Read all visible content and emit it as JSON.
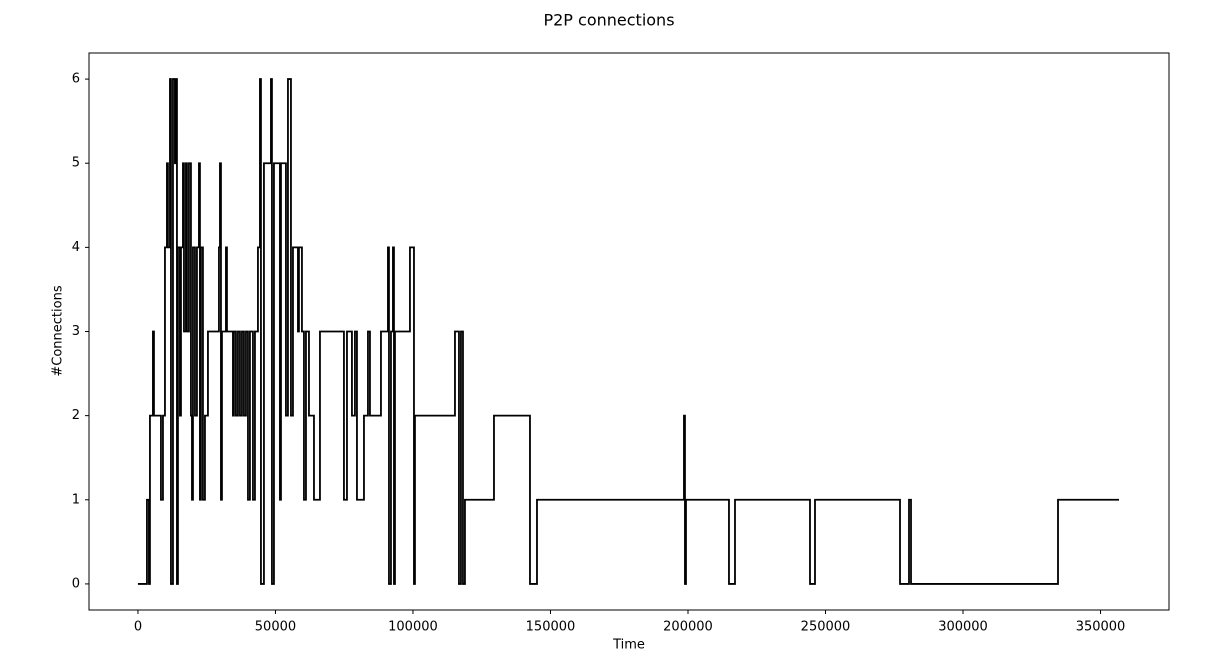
{
  "chart_data": {
    "type": "step",
    "title": "P2P connections",
    "x_label": "Time",
    "y_label": "#Connections",
    "series": [
      {
        "name": "connections",
        "color": "#000000",
        "x": [
          0,
          3270,
          4000,
          4360,
          5450,
          5820,
          8360,
          9090,
          9820,
          10540,
          10900,
          11640,
          12000,
          12730,
          13450,
          13800,
          14180,
          14540,
          15270,
          15640,
          16360,
          16730,
          17450,
          17820,
          18540,
          19270,
          19640,
          20000,
          20730,
          21450,
          22180,
          22540,
          22900,
          23630,
          24360,
          25450,
          29450,
          29820,
          30180,
          30540,
          32000,
          32360,
          34540,
          34900,
          35630,
          36360,
          37090,
          37820,
          38540,
          39270,
          40000,
          40720,
          41810,
          42540,
          43630,
          44360,
          44720,
          45810,
          48360,
          48720,
          49450,
          51630,
          52000,
          53810,
          54540,
          55630,
          56360,
          58180,
          58540,
          59630,
          60360,
          61090,
          62180,
          64000,
          66180,
          74900,
          76000,
          77810,
          78900,
          79630,
          82180,
          83630,
          84360,
          88360,
          90900,
          91270,
          92000,
          92720,
          93090,
          93450,
          98900,
          100360,
          100720,
          115270,
          116720,
          117450,
          118180,
          118900,
          129450,
          142540,
          145090,
          198540,
          198900,
          199270,
          214900,
          217090,
          244360,
          246180,
          277090,
          280360,
          281090,
          334540,
          356720
        ],
        "values": [
          0,
          1,
          0,
          2,
          3,
          2,
          1,
          2,
          4,
          5,
          4,
          6,
          0,
          6,
          5,
          6,
          0,
          4,
          2,
          4,
          5,
          3,
          5,
          3,
          5,
          2,
          1,
          4,
          2,
          4,
          5,
          1,
          4,
          1,
          2,
          3,
          4,
          5,
          1,
          3,
          4,
          3,
          2,
          3,
          2,
          3,
          2,
          3,
          2,
          3,
          1,
          3,
          1,
          3,
          4,
          6,
          0,
          5,
          6,
          0,
          5,
          1,
          5,
          2,
          6,
          2,
          4,
          3,
          4,
          3,
          1,
          3,
          2,
          1,
          3,
          1,
          3,
          2,
          3,
          1,
          2,
          3,
          2,
          3,
          4,
          0,
          3,
          4,
          0,
          3,
          4,
          0,
          2,
          3,
          0,
          3,
          0,
          1,
          2,
          0,
          1,
          2,
          0,
          1,
          0,
          1,
          0,
          1,
          0,
          1,
          0,
          1,
          1
        ]
      }
    ],
    "xlim": [
      -17800,
      374900
    ],
    "xticks": [
      0,
      50000,
      100000,
      150000,
      200000,
      250000,
      300000,
      350000
    ],
    "ylim": [
      -0.31,
      6.31
    ],
    "yticks": [
      0,
      1,
      2,
      3,
      4,
      5,
      6
    ]
  }
}
